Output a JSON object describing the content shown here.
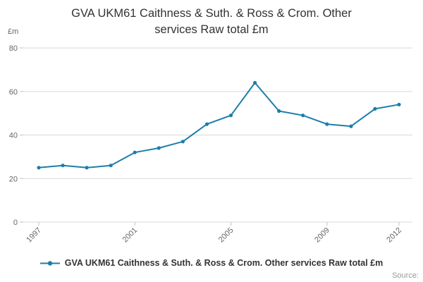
{
  "source_label": "Source:",
  "legend": {
    "label": "GVA UKM61 Caithness & Suth. & Ross & Crom. Other services Raw total £m"
  },
  "chart_data": {
    "type": "line",
    "title": "GVA UKM61 Caithness & Suth. & Ross & Crom. Other services Raw total £m",
    "ylabel": "£m",
    "xlabel": "",
    "color": "#1b7eaa",
    "grid": true,
    "legend_position": "bottom",
    "ylim": [
      0,
      80
    ],
    "yticks": [
      0,
      20,
      40,
      60,
      80
    ],
    "xticks": [
      1997,
      2001,
      2005,
      2009,
      2012
    ],
    "x": [
      1997,
      1998,
      1999,
      2000,
      2001,
      2002,
      2003,
      2004,
      2005,
      2006,
      2007,
      2008,
      2009,
      2010,
      2011,
      2012
    ],
    "values": [
      25,
      26,
      25,
      26,
      32,
      34,
      37,
      45,
      49,
      64,
      51,
      49,
      45,
      44,
      52,
      54
    ]
  }
}
